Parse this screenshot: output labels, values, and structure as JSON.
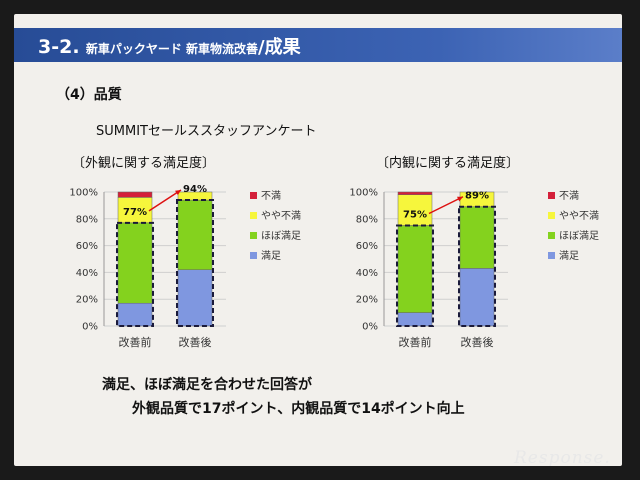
{
  "header": {
    "number": "3-2.",
    "subtitle": "新車パックヤード 新車物流改善",
    "title_suffix": "/成果"
  },
  "section_label": "（4）品質",
  "survey_label": "SUMMITセールススタッフアンケート",
  "footer": {
    "line1": "満足、ほぼ満足を合わせた回答が",
    "line2": "外観品質で17ポイント、内観品質で14ポイント向上"
  },
  "logo_text": "Response.",
  "chart_data": [
    {
      "type": "bar",
      "stacked": true,
      "title": "〔外観に関する満足度〕",
      "categories": [
        "改善前",
        "改善後"
      ],
      "series": [
        {
          "name": "満足",
          "color": "#7f97e0",
          "values": [
            17,
            42
          ]
        },
        {
          "name": "ほぼ満足",
          "color": "#84d21e",
          "values": [
            60,
            52
          ]
        },
        {
          "name": "やや不満",
          "color": "#f6f63c",
          "values": [
            19,
            6
          ]
        },
        {
          "name": "不満",
          "color": "#d4203a",
          "values": [
            4,
            0
          ]
        }
      ],
      "yticks": [
        "0%",
        "20%",
        "40%",
        "60%",
        "80%",
        "100%"
      ],
      "ylim": [
        0,
        100
      ],
      "annotations": [
        "77%",
        "94%"
      ],
      "legend": "right"
    },
    {
      "type": "bar",
      "stacked": true,
      "title": "〔内観に関する満足度〕",
      "categories": [
        "改善前",
        "改善後"
      ],
      "series": [
        {
          "name": "満足",
          "color": "#7f97e0",
          "values": [
            10,
            43
          ]
        },
        {
          "name": "ほぼ満足",
          "color": "#84d21e",
          "values": [
            65,
            46
          ]
        },
        {
          "name": "やや不満",
          "color": "#f6f63c",
          "values": [
            23,
            11
          ]
        },
        {
          "name": "不満",
          "color": "#d4203a",
          "values": [
            2,
            0
          ]
        }
      ],
      "yticks": [
        "0%",
        "20%",
        "40%",
        "60%",
        "80%",
        "100%"
      ],
      "ylim": [
        0,
        100
      ],
      "annotations": [
        "75%",
        "89%"
      ],
      "legend": "right"
    }
  ]
}
